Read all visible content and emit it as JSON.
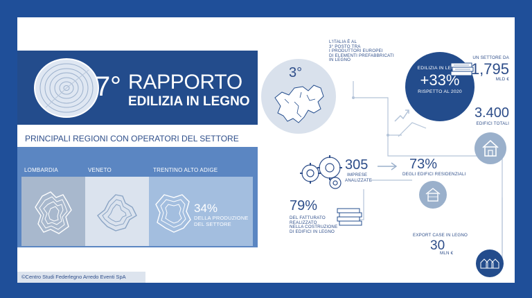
{
  "report": {
    "number": "7°",
    "title_line1": "RAPPORTO",
    "title_line2": "EDILIZIA IN LEGNO"
  },
  "regions": {
    "heading": "PRINCIPALI  REGIONI CON OPERATORI DEL SETTORE",
    "names": [
      "LOMBARDIA",
      "VENETO",
      "TRENTINO ALTO ADIGE"
    ],
    "share_value": "34%",
    "share_label_line1": "DELLA PRODUZIONE",
    "share_label_line2": "DEL SETTORE"
  },
  "italy_rank": {
    "badge": "3°",
    "text_lines": [
      "L'ITALIA È AL",
      "3° POSTO TRA",
      "I PRODUTTORI EUROPEI",
      "DI ELEMENTI PREFABBRICATI",
      "IN LEGNO"
    ]
  },
  "growth": {
    "label": "EDILIZIA IN LEGNO",
    "value": "+33%",
    "subtitle": "RISPETTO AL 2020"
  },
  "sector": {
    "label": "UN SETTORE DA",
    "value": "1,795",
    "unit": "MLD €"
  },
  "buildings": {
    "value": "3.400",
    "label": "EDIFICI TOTALI"
  },
  "companies": {
    "value": "305",
    "label_line1": "IMPRESE",
    "label_line2": "ANALIZZATE"
  },
  "residential": {
    "value": "73%",
    "label": "DEGLI EDIFICI RESIDENZIALI"
  },
  "revenue": {
    "value": "79%",
    "text_lines": [
      "DEL FATTURATO",
      "REALIZZATO",
      "NELLA COSTRUZIONE",
      "DI EDIFICI IN LEGNO"
    ]
  },
  "export": {
    "label": "EXPORT CASE IN LEGNO",
    "value": "30",
    "unit": "MLN €"
  },
  "credit": "©Centro Studi Federlegno Arredo Eventi SpA",
  "colors": {
    "frame": "#1f4f99",
    "dark_blue": "#234c8c",
    "text_blue": "#2d4d89",
    "light_blue": "#5b86c2",
    "pale_blue": "#a3bedf",
    "grey_blue": "#9ab0cb"
  }
}
